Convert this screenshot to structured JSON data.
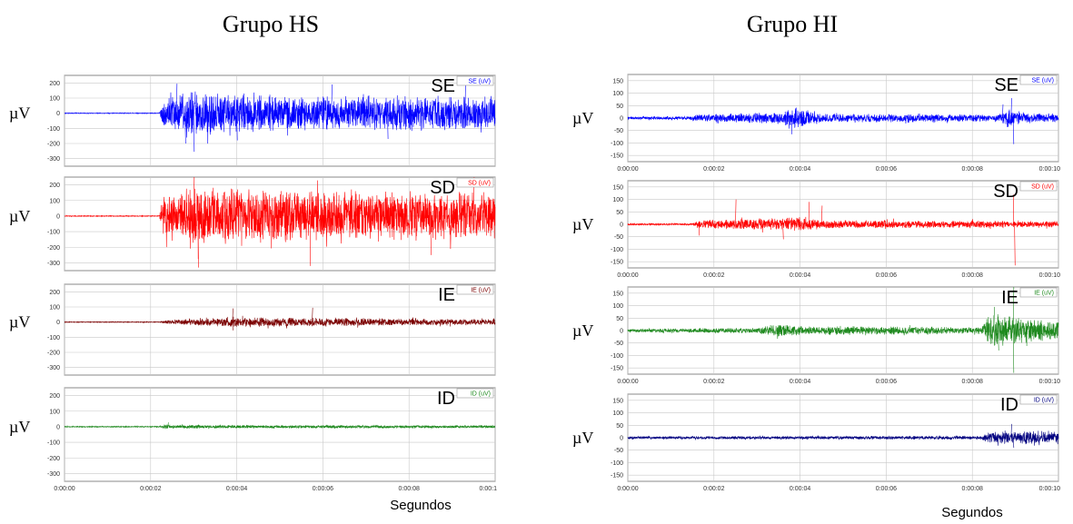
{
  "chart_data": [
    {
      "type": "line",
      "title": "Grupo HS",
      "xlabel": "Segundos",
      "x_ticks": [
        "0:00:00",
        "0:00:02",
        "0:00:04",
        "0:00:06",
        "0:00:08",
        "0:00:1"
      ],
      "xlim": [
        0,
        10
      ],
      "y_ticks": [
        200,
        100,
        0,
        -100,
        -200,
        -300
      ],
      "ylim": [
        -350,
        250
      ],
      "grid": true,
      "series": [
        {
          "name": "SE (uV)",
          "label": "SE",
          "ylabel": "µV",
          "color": "#0000ff",
          "profile": [
            [
              0,
              3
            ],
            [
              2.2,
              3
            ],
            [
              2.3,
              110
            ],
            [
              3.0,
              170
            ],
            [
              5,
              120
            ],
            [
              10,
              120
            ]
          ],
          "spikes": [
            [
              2.6,
              195
            ],
            [
              3.0,
              -255
            ],
            [
              2.8,
              -200
            ],
            [
              4.0,
              -180
            ],
            [
              6.2,
              190
            ],
            [
              7.5,
              -170
            ],
            [
              9.3,
              185
            ]
          ]
        },
        {
          "name": "SD (uV)",
          "label": "SD",
          "ylabel": "µV",
          "color": "#ff0000",
          "profile": [
            [
              0,
              3
            ],
            [
              2.2,
              3
            ],
            [
              2.3,
              130
            ],
            [
              3.0,
              200
            ],
            [
              6,
              170
            ],
            [
              10,
              160
            ]
          ],
          "spikes": [
            [
              3.1,
              -330
            ],
            [
              3.0,
              250
            ],
            [
              5.7,
              -320
            ],
            [
              9.5,
              250
            ],
            [
              8.5,
              -250
            ]
          ]
        },
        {
          "name": "IE (uV)",
          "label": "IE",
          "ylabel": "µV",
          "color": "#7b0000",
          "profile": [
            [
              0,
              3
            ],
            [
              2.2,
              3
            ],
            [
              2.4,
              15
            ],
            [
              3.3,
              28
            ],
            [
              4.0,
              35
            ],
            [
              10,
              20
            ]
          ],
          "spikes": [
            [
              3.9,
              90
            ],
            [
              3.9,
              -55
            ],
            [
              5.75,
              95
            ]
          ]
        },
        {
          "name": "ID (uV)",
          "label": "ID",
          "ylabel": "µV",
          "color": "#1f8a1f",
          "profile": [
            [
              0,
              4
            ],
            [
              2.2,
              4
            ],
            [
              2.3,
              18
            ],
            [
              2.6,
              12
            ],
            [
              10,
              9
            ]
          ],
          "spikes": [
            [
              2.4,
              28
            ]
          ]
        }
      ]
    },
    {
      "type": "line",
      "title": "Grupo HI",
      "xlabel": "Segundos",
      "x_ticks": [
        "0:00:00",
        "0:00:02",
        "0:00:04",
        "0:00:06",
        "0:00:08",
        "0:00:10"
      ],
      "xlim": [
        0,
        10
      ],
      "y_ticks": [
        150,
        100,
        50,
        0,
        -50,
        -100,
        -150
      ],
      "ylim": [
        -175,
        175
      ],
      "grid": true,
      "series": [
        {
          "name": "SE (uV)",
          "label": "SE",
          "ylabel": "µV",
          "color": "#0000ff",
          "profile": [
            [
              0,
              6
            ],
            [
              1.5,
              8
            ],
            [
              1.6,
              15
            ],
            [
              3.5,
              25
            ],
            [
              3.9,
              45
            ],
            [
              4.5,
              20
            ],
            [
              8.6,
              15
            ],
            [
              8.8,
              40
            ],
            [
              9.2,
              25
            ],
            [
              10,
              18
            ]
          ],
          "spikes": [
            [
              3.8,
              -65
            ],
            [
              8.9,
              80
            ],
            [
              8.95,
              -105
            ],
            [
              8.7,
              55
            ]
          ]
        },
        {
          "name": "SD (uV)",
          "label": "SD",
          "ylabel": "µV",
          "color": "#ff0000",
          "profile": [
            [
              0,
              4
            ],
            [
              1.5,
              4
            ],
            [
              1.7,
              18
            ],
            [
              2.5,
              22
            ],
            [
              4,
              30
            ],
            [
              4.5,
              18
            ],
            [
              10,
              14
            ]
          ],
          "spikes": [
            [
              1.65,
              -45
            ],
            [
              2.5,
              100
            ],
            [
              3.6,
              -60
            ],
            [
              4.2,
              90
            ],
            [
              4.5,
              75
            ],
            [
              8.95,
              120
            ],
            [
              8.98,
              -165
            ]
          ]
        },
        {
          "name": "IE (uV)",
          "label": "IE",
          "ylabel": "µV",
          "color": "#1f8a1f",
          "profile": [
            [
              0,
              8
            ],
            [
              3,
              12
            ],
            [
              3.5,
              30
            ],
            [
              4.1,
              20
            ],
            [
              8.2,
              15
            ],
            [
              8.4,
              70
            ],
            [
              9,
              60
            ],
            [
              10,
              40
            ]
          ],
          "spikes": [
            [
              8.95,
              175
            ],
            [
              8.95,
              -170
            ],
            [
              8.6,
              -80
            ],
            [
              8.5,
              95
            ]
          ]
        },
        {
          "name": "ID (uV)",
          "label": "ID",
          "ylabel": "µV",
          "color": "#000080",
          "profile": [
            [
              0,
              6
            ],
            [
              8.2,
              8
            ],
            [
              8.4,
              25
            ],
            [
              9.5,
              30
            ],
            [
              10,
              25
            ]
          ],
          "spikes": [
            [
              8.9,
              55
            ],
            [
              8.95,
              -40
            ]
          ]
        }
      ]
    }
  ]
}
